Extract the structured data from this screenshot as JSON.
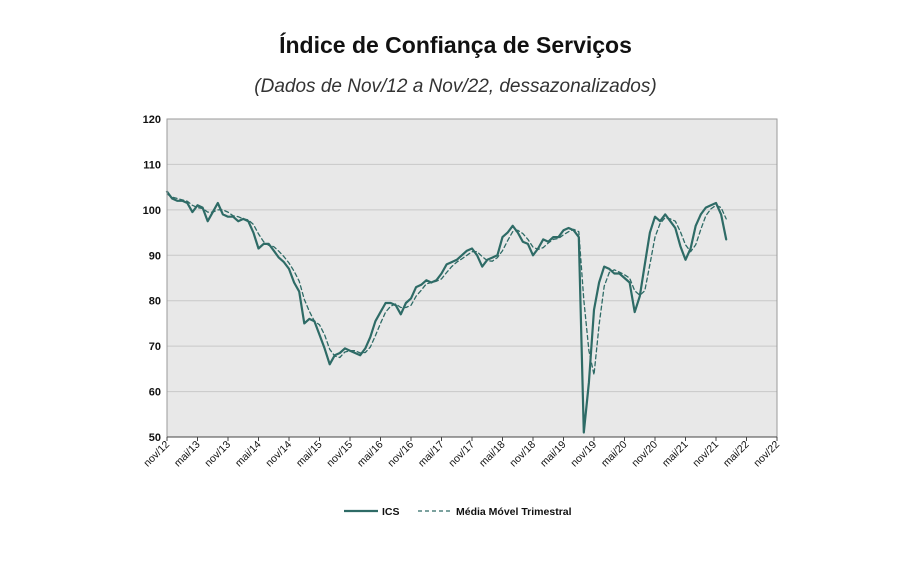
{
  "title": "Índice de Confiança de Serviços",
  "subtitle": "(Dados de Nov/12 a Nov/22, dessazonalizados)",
  "colors": {
    "series": "#2e6b66",
    "plot_bg": "#e8e8e8",
    "grid": "#c8c8c8"
  },
  "chart_data": {
    "type": "line",
    "title": "Índice de Confiança de Serviços",
    "subtitle": "(Dados de Nov/12 a Nov/22, dessazonalizados)",
    "ylim": [
      50,
      120
    ],
    "yticks": [
      50,
      60,
      70,
      80,
      90,
      100,
      110,
      120
    ],
    "xlim": [
      0,
      120
    ],
    "grid": true,
    "legend_position": "bottom-center",
    "xtick_labels": [
      "nov/12",
      "mai/13",
      "nov/13",
      "mai/14",
      "nov/14",
      "mai/15",
      "nov/15",
      "mai/16",
      "nov/16",
      "mai/17",
      "nov/17",
      "mai/18",
      "nov/18",
      "mai/19",
      "nov/19",
      "mai/20",
      "nov/20",
      "mai/21",
      "nov/21",
      "mai/22",
      "nov/22"
    ],
    "series": [
      {
        "name": "ICS",
        "style": "solid",
        "values": [
          104,
          102.5,
          102,
          102,
          101.5,
          99.5,
          101,
          100.5,
          97.5,
          99.5,
          101.5,
          99,
          98.5,
          98.5,
          97.5,
          98,
          97.5,
          95,
          91.5,
          92.5,
          92.5,
          91,
          89.5,
          88.5,
          87,
          84,
          82,
          75,
          76,
          75.5,
          72.5,
          69.5,
          66,
          68,
          68.5,
          69.5,
          69,
          68.5,
          68,
          69.5,
          72,
          75.5,
          77.5,
          79.5,
          79.5,
          79,
          77,
          79.5,
          80.5,
          83,
          83.5,
          84.5,
          84,
          84.5,
          86,
          88,
          88.5,
          89,
          90,
          91,
          91.5,
          90,
          87.5,
          89,
          89.5,
          90,
          94,
          95,
          96.5,
          95,
          93,
          92.5,
          90,
          91.5,
          93.5,
          93,
          94,
          94,
          95.5,
          96,
          95.5,
          94,
          51,
          62,
          78,
          84,
          87.5,
          87,
          86,
          86,
          85,
          84,
          77.5,
          81,
          88,
          95,
          98.5,
          97.5,
          99,
          97.5,
          96,
          92,
          89,
          91.5,
          96.5,
          99,
          100.5,
          101,
          101.5,
          99,
          93.5
        ]
      },
      {
        "name": "Média Móvel Trimestral",
        "style": "dashed",
        "values": [
          103.5,
          102.8,
          102.5,
          102.2,
          101.9,
          101,
          100.5,
          100.3,
          99.5,
          99.5,
          100,
          100,
          99.5,
          98.7,
          98.5,
          98,
          97.8,
          96.8,
          94.7,
          93,
          92.2,
          91.9,
          90.9,
          89.7,
          88.3,
          86.5,
          84.3,
          80.3,
          77.7,
          75.5,
          74.7,
          72.5,
          69.3,
          67.8,
          67.5,
          68.7,
          69,
          69,
          68.5,
          68.6,
          69.8,
          72.3,
          75,
          77.5,
          78.8,
          79.3,
          78.5,
          78.5,
          79,
          81,
          82.3,
          83.7,
          84,
          84.3,
          84.8,
          86.2,
          87.5,
          88.5,
          89.2,
          90,
          90.8,
          90.8,
          89.7,
          88.8,
          88.7,
          89.5,
          91,
          93.2,
          95.2,
          95.5,
          94.8,
          93.5,
          91.8,
          91.3,
          91.7,
          92.7,
          93.5,
          93.7,
          94.5,
          95.2,
          95.7,
          95.2,
          80.2,
          69,
          63.7,
          74.7,
          83.2,
          86.2,
          86.8,
          86.3,
          85.7,
          85,
          82.2,
          81.2,
          82.2,
          88,
          94,
          97,
          98.3,
          98,
          97.5,
          95.2,
          92.3,
          90.8,
          92.3,
          95.7,
          98.7,
          100.2,
          101,
          100.5,
          98
        ]
      }
    ]
  },
  "legend": [
    {
      "label": "ICS",
      "style": "solid"
    },
    {
      "label": "Média Móvel Trimestral",
      "style": "dashed"
    }
  ]
}
